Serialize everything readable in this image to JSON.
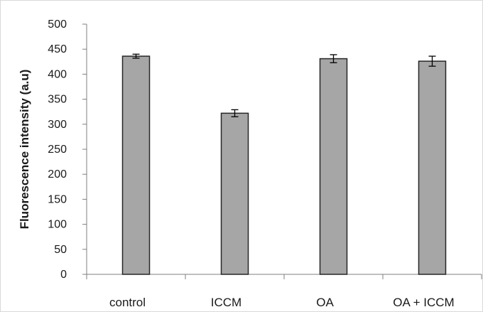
{
  "chart_data": {
    "type": "bar",
    "categories": [
      "control",
      "ICCM",
      "OA",
      "OA + ICCM"
    ],
    "values": [
      436,
      322,
      431,
      426
    ],
    "error": [
      4,
      7,
      8,
      10
    ],
    "ylabel": "Fluorescence intensity (a.u)",
    "xlabel": "",
    "ylim": [
      0,
      500
    ],
    "yticks": [
      0,
      50,
      100,
      150,
      200,
      250,
      300,
      350,
      400,
      450,
      500
    ],
    "grid": false,
    "legend": "none",
    "colors": {
      "bar_fill": "#a6a6a6",
      "bar_stroke": "#262626",
      "axis": "#7f7f7f"
    }
  }
}
